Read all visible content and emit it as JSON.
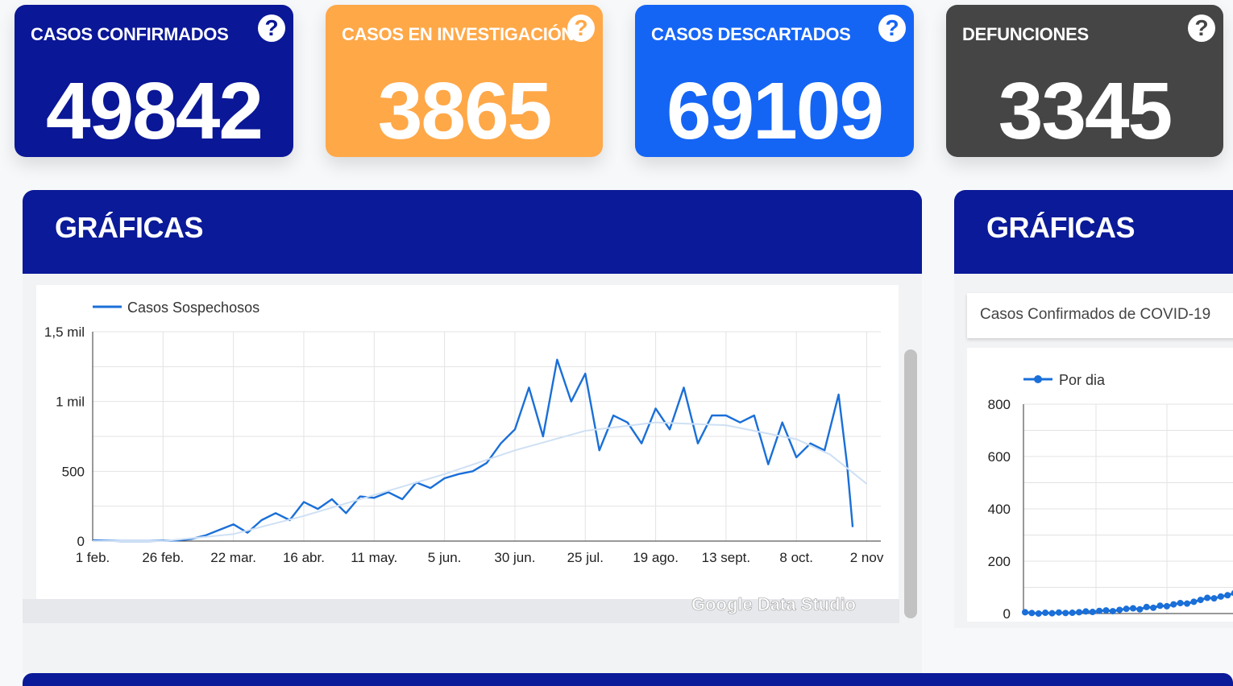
{
  "cards": [
    {
      "label": "CASOS CONFIRMADOS",
      "value": "49842",
      "color": "#0a1797"
    },
    {
      "label": "CASOS EN INVESTIGACIÓN",
      "value": "3865",
      "color": "#ffa848"
    },
    {
      "label": "CASOS DESCARTADOS",
      "value": "69109",
      "color": "#1565f5"
    },
    {
      "label": "DEFUNCIONES",
      "value": "3345",
      "color": "#454545"
    }
  ],
  "help_glyph": "?",
  "panels": [
    {
      "title": "GRÁFICAS"
    },
    {
      "title": "GRÁFICAS"
    }
  ],
  "dropdown": {
    "value": "Casos Confirmados de COVID-19"
  },
  "watermark": "Google Data Studio",
  "chart_data": [
    {
      "type": "line",
      "legend": [
        "Casos Sospechosos"
      ],
      "legend_position": "top-left",
      "grid": true,
      "ylim": [
        0,
        1500
      ],
      "y_ticks": [
        "0",
        "500",
        "1 mil",
        "1,5 mil"
      ],
      "y_tick_values": [
        0,
        500,
        1000,
        1500
      ],
      "x_ticks": [
        "1 feb.",
        "26 feb.",
        "22 mar.",
        "16 abr.",
        "11 may.",
        "5 jun.",
        "30 jun.",
        "25 jul.",
        "19 ago.",
        "13 sept.",
        "8 oct.",
        "2 nov"
      ],
      "x_tick_days": [
        0,
        25,
        50,
        75,
        100,
        125,
        150,
        175,
        200,
        225,
        250,
        275
      ],
      "series": [
        {
          "name": "Casos Sospechosos",
          "color": "#1a6fd8",
          "x_days": [
            0,
            10,
            20,
            30,
            35,
            40,
            45,
            50,
            55,
            60,
            65,
            70,
            75,
            80,
            85,
            90,
            95,
            100,
            105,
            110,
            115,
            120,
            125,
            130,
            135,
            140,
            145,
            150,
            155,
            160,
            165,
            170,
            175,
            180,
            185,
            190,
            195,
            200,
            205,
            210,
            215,
            220,
            225,
            230,
            235,
            240,
            245,
            250,
            255,
            260,
            265,
            268,
            270
          ],
          "values": [
            5,
            0,
            0,
            5,
            15,
            40,
            80,
            120,
            60,
            150,
            200,
            150,
            280,
            230,
            300,
            200,
            320,
            310,
            350,
            300,
            420,
            380,
            450,
            480,
            500,
            560,
            700,
            800,
            1100,
            750,
            1300,
            1000,
            1200,
            650,
            900,
            850,
            700,
            950,
            800,
            1100,
            700,
            900,
            900,
            850,
            900,
            550,
            850,
            600,
            700,
            650,
            1050,
            550,
            100
          ]
        },
        {
          "name": "trend",
          "color": "#cfe0f4",
          "x_days": [
            0,
            25,
            50,
            75,
            100,
            125,
            150,
            175,
            200,
            225,
            250,
            262,
            275
          ],
          "values": [
            0,
            0,
            50,
            180,
            330,
            480,
            650,
            790,
            850,
            830,
            730,
            620,
            410
          ]
        }
      ]
    },
    {
      "type": "line",
      "legend": [
        "Por dia"
      ],
      "legend_position": "top-left",
      "grid": true,
      "ylim": [
        0,
        800
      ],
      "y_ticks": [
        "0",
        "200",
        "400",
        "600",
        "800"
      ],
      "y_tick_values": [
        0,
        200,
        400,
        600,
        800
      ],
      "series": [
        {
          "name": "Por dia",
          "color": "#1a6fd8",
          "values": [
            5,
            2,
            0,
            3,
            1,
            4,
            2,
            3,
            5,
            8,
            6,
            10,
            12,
            9,
            14,
            18,
            20,
            16,
            25,
            22,
            30,
            28,
            35,
            40,
            38,
            45,
            52,
            60,
            58,
            65,
            70,
            78,
            85
          ]
        }
      ]
    }
  ]
}
